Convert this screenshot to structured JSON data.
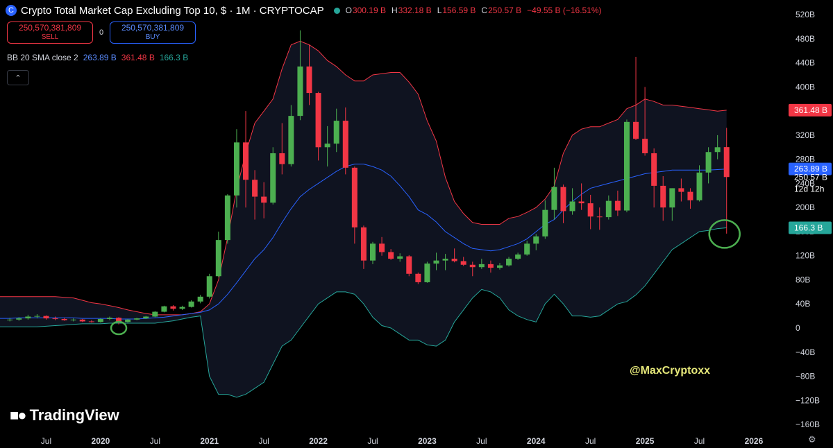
{
  "header": {
    "title": "Crypto Total Market Cap Excluding Top 10, $ · 1M · CRYPTOCAP",
    "icon_symbol": "C",
    "ohlc": [
      {
        "key": "O",
        "value": "300.19 B"
      },
      {
        "key": "H",
        "value": "332.18 B"
      },
      {
        "key": "L",
        "value": "156.59 B"
      },
      {
        "key": "C",
        "value": "250.57 B"
      },
      {
        "key": "",
        "value": "−49.55 B (−16.51%)"
      }
    ]
  },
  "trade": {
    "sell_price": "250,570,381,809",
    "sell_label": "SELL",
    "spread": "0",
    "buy_price": "250,570,381,809",
    "buy_label": "BUY"
  },
  "indicator": {
    "name": "BB 20 SMA close 2",
    "values": [
      {
        "value": "263.89 B",
        "color": "#5b8cff"
      },
      {
        "value": "361.48 B",
        "color": "#f23645"
      },
      {
        "value": "166.3 B",
        "color": "#26a69a"
      }
    ]
  },
  "collapse_icon": "chevron-up-icon",
  "watermark": "@MaxCryptoxx",
  "logo_text": "TradingView",
  "settings_icon": "gear-icon",
  "colors": {
    "up": "#4caf50",
    "down": "#f23645",
    "upper_band": "#f23645",
    "basis": "#2962ff",
    "lower_band": "#26a69a",
    "background": "#000000"
  },
  "chart_data": {
    "type": "candlestick",
    "title": "Crypto Total Market Cap Excluding Top 10, $ · 1M · CRYPTOCAP",
    "unit": "B",
    "ylim": [
      -180,
      540
    ],
    "y_ticks": [
      520,
      480,
      440,
      400,
      360,
      320,
      280,
      240,
      200,
      160,
      120,
      80,
      40,
      0,
      -40,
      -80,
      -120,
      -160
    ],
    "y_tick_labels": [
      "520B",
      "480B",
      "440B",
      "400B",
      "360B",
      "320B",
      "280B",
      "240B",
      "200B",
      "160B",
      "120B",
      "80B",
      "40B",
      "0",
      "−40B",
      "−80B",
      "−120B",
      "−160B"
    ],
    "x_ticks": [
      {
        "label": "Jul",
        "date": "2019-07"
      },
      {
        "label": "2020",
        "date": "2020-01"
      },
      {
        "label": "Jul",
        "date": "2020-07"
      },
      {
        "label": "2021",
        "date": "2021-01"
      },
      {
        "label": "Jul",
        "date": "2021-07"
      },
      {
        "label": "2022",
        "date": "2022-01"
      },
      {
        "label": "Jul",
        "date": "2022-07"
      },
      {
        "label": "2023",
        "date": "2023-01"
      },
      {
        "label": "Jul",
        "date": "2023-07"
      },
      {
        "label": "2024",
        "date": "2024-01"
      },
      {
        "label": "Jul",
        "date": "2024-07"
      },
      {
        "label": "2025",
        "date": "2025-01"
      },
      {
        "label": "Jul",
        "date": "2025-07"
      },
      {
        "label": "2026",
        "date": "2026-01"
      }
    ],
    "candles": [
      {
        "date": "2019-03",
        "o": 13,
        "h": 17,
        "l": 11,
        "c": 14
      },
      {
        "date": "2019-04",
        "o": 14,
        "h": 18,
        "l": 12,
        "c": 16
      },
      {
        "date": "2019-05",
        "o": 16,
        "h": 22,
        "l": 14,
        "c": 19
      },
      {
        "date": "2019-06",
        "o": 19,
        "h": 23,
        "l": 16,
        "c": 20
      },
      {
        "date": "2019-07",
        "o": 20,
        "h": 21,
        "l": 14,
        "c": 16
      },
      {
        "date": "2019-08",
        "o": 16,
        "h": 19,
        "l": 13,
        "c": 15
      },
      {
        "date": "2019-09",
        "o": 15,
        "h": 17,
        "l": 12,
        "c": 13
      },
      {
        "date": "2019-10",
        "o": 13,
        "h": 16,
        "l": 11,
        "c": 14
      },
      {
        "date": "2019-11",
        "o": 14,
        "h": 15,
        "l": 10,
        "c": 11
      },
      {
        "date": "2019-12",
        "o": 11,
        "h": 13,
        "l": 9,
        "c": 10
      },
      {
        "date": "2020-01",
        "o": 10,
        "h": 16,
        "l": 9,
        "c": 15
      },
      {
        "date": "2020-02",
        "o": 15,
        "h": 19,
        "l": 13,
        "c": 17
      },
      {
        "date": "2020-03",
        "o": 17,
        "h": 18,
        "l": 6,
        "c": 10
      },
      {
        "date": "2020-04",
        "o": 10,
        "h": 15,
        "l": 9,
        "c": 14
      },
      {
        "date": "2020-05",
        "o": 14,
        "h": 17,
        "l": 13,
        "c": 16
      },
      {
        "date": "2020-06",
        "o": 16,
        "h": 20,
        "l": 15,
        "c": 19
      },
      {
        "date": "2020-07",
        "o": 19,
        "h": 28,
        "l": 18,
        "c": 27
      },
      {
        "date": "2020-08",
        "o": 27,
        "h": 37,
        "l": 26,
        "c": 36
      },
      {
        "date": "2020-09",
        "o": 36,
        "h": 38,
        "l": 29,
        "c": 32
      },
      {
        "date": "2020-10",
        "o": 32,
        "h": 37,
        "l": 30,
        "c": 35
      },
      {
        "date": "2020-11",
        "o": 35,
        "h": 46,
        "l": 34,
        "c": 44
      },
      {
        "date": "2020-12",
        "o": 44,
        "h": 55,
        "l": 41,
        "c": 52
      },
      {
        "date": "2021-01",
        "o": 52,
        "h": 90,
        "l": 49,
        "c": 86
      },
      {
        "date": "2021-02",
        "o": 86,
        "h": 160,
        "l": 84,
        "c": 146
      },
      {
        "date": "2021-03",
        "o": 146,
        "h": 222,
        "l": 140,
        "c": 220
      },
      {
        "date": "2021-04",
        "o": 220,
        "h": 330,
        "l": 200,
        "c": 308
      },
      {
        "date": "2021-05",
        "o": 308,
        "h": 360,
        "l": 200,
        "c": 246
      },
      {
        "date": "2021-06",
        "o": 246,
        "h": 262,
        "l": 180,
        "c": 218
      },
      {
        "date": "2021-07",
        "o": 218,
        "h": 242,
        "l": 182,
        "c": 208
      },
      {
        "date": "2021-08",
        "o": 208,
        "h": 300,
        "l": 205,
        "c": 290
      },
      {
        "date": "2021-09",
        "o": 290,
        "h": 340,
        "l": 255,
        "c": 272
      },
      {
        "date": "2021-10",
        "o": 272,
        "h": 370,
        "l": 268,
        "c": 352
      },
      {
        "date": "2021-11",
        "o": 352,
        "h": 494,
        "l": 345,
        "c": 434
      },
      {
        "date": "2021-12",
        "o": 434,
        "h": 470,
        "l": 370,
        "c": 390
      },
      {
        "date": "2022-01",
        "o": 390,
        "h": 392,
        "l": 278,
        "c": 300
      },
      {
        "date": "2022-02",
        "o": 300,
        "h": 335,
        "l": 268,
        "c": 306
      },
      {
        "date": "2022-03",
        "o": 306,
        "h": 364,
        "l": 292,
        "c": 344
      },
      {
        "date": "2022-04",
        "o": 344,
        "h": 366,
        "l": 255,
        "c": 266
      },
      {
        "date": "2022-05",
        "o": 266,
        "h": 268,
        "l": 140,
        "c": 167
      },
      {
        "date": "2022-06",
        "o": 167,
        "h": 170,
        "l": 98,
        "c": 112
      },
      {
        "date": "2022-07",
        "o": 112,
        "h": 143,
        "l": 106,
        "c": 140
      },
      {
        "date": "2022-08",
        "o": 140,
        "h": 151,
        "l": 120,
        "c": 126
      },
      {
        "date": "2022-09",
        "o": 126,
        "h": 131,
        "l": 113,
        "c": 115
      },
      {
        "date": "2022-10",
        "o": 115,
        "h": 124,
        "l": 110,
        "c": 119
      },
      {
        "date": "2022-11",
        "o": 119,
        "h": 121,
        "l": 86,
        "c": 90
      },
      {
        "date": "2022-12",
        "o": 90,
        "h": 92,
        "l": 73,
        "c": 76
      },
      {
        "date": "2023-01",
        "o": 76,
        "h": 110,
        "l": 75,
        "c": 107
      },
      {
        "date": "2023-02",
        "o": 107,
        "h": 125,
        "l": 96,
        "c": 112
      },
      {
        "date": "2023-03",
        "o": 112,
        "h": 123,
        "l": 96,
        "c": 115
      },
      {
        "date": "2023-04",
        "o": 115,
        "h": 132,
        "l": 109,
        "c": 111
      },
      {
        "date": "2023-05",
        "o": 111,
        "h": 118,
        "l": 103,
        "c": 105
      },
      {
        "date": "2023-06",
        "o": 105,
        "h": 110,
        "l": 86,
        "c": 101
      },
      {
        "date": "2023-07",
        "o": 101,
        "h": 115,
        "l": 98,
        "c": 106
      },
      {
        "date": "2023-08",
        "o": 106,
        "h": 112,
        "l": 92,
        "c": 100
      },
      {
        "date": "2023-09",
        "o": 100,
        "h": 108,
        "l": 97,
        "c": 104
      },
      {
        "date": "2023-10",
        "o": 104,
        "h": 118,
        "l": 102,
        "c": 115
      },
      {
        "date": "2023-11",
        "o": 115,
        "h": 125,
        "l": 113,
        "c": 122
      },
      {
        "date": "2023-12",
        "o": 122,
        "h": 145,
        "l": 120,
        "c": 140
      },
      {
        "date": "2024-01",
        "o": 140,
        "h": 156,
        "l": 129,
        "c": 152
      },
      {
        "date": "2024-02",
        "o": 152,
        "h": 212,
        "l": 148,
        "c": 196
      },
      {
        "date": "2024-03",
        "o": 196,
        "h": 266,
        "l": 180,
        "c": 234
      },
      {
        "date": "2024-04",
        "o": 234,
        "h": 238,
        "l": 174,
        "c": 194
      },
      {
        "date": "2024-05",
        "o": 194,
        "h": 232,
        "l": 188,
        "c": 210
      },
      {
        "date": "2024-06",
        "o": 210,
        "h": 240,
        "l": 196,
        "c": 207
      },
      {
        "date": "2024-07",
        "o": 207,
        "h": 221,
        "l": 164,
        "c": 185
      },
      {
        "date": "2024-08",
        "o": 185,
        "h": 200,
        "l": 163,
        "c": 184
      },
      {
        "date": "2024-09",
        "o": 184,
        "h": 220,
        "l": 180,
        "c": 211
      },
      {
        "date": "2024-10",
        "o": 211,
        "h": 228,
        "l": 186,
        "c": 195
      },
      {
        "date": "2024-11",
        "o": 195,
        "h": 346,
        "l": 192,
        "c": 342
      },
      {
        "date": "2024-12",
        "o": 342,
        "h": 450,
        "l": 312,
        "c": 314
      },
      {
        "date": "2025-01",
        "o": 314,
        "h": 400,
        "l": 286,
        "c": 290
      },
      {
        "date": "2025-02",
        "o": 290,
        "h": 298,
        "l": 200,
        "c": 236
      },
      {
        "date": "2025-03",
        "o": 236,
        "h": 252,
        "l": 178,
        "c": 200
      },
      {
        "date": "2025-04",
        "o": 200,
        "h": 232,
        "l": 178,
        "c": 232
      },
      {
        "date": "2025-05",
        "o": 232,
        "h": 248,
        "l": 210,
        "c": 226
      },
      {
        "date": "2025-06",
        "o": 226,
        "h": 232,
        "l": 198,
        "c": 212
      },
      {
        "date": "2025-07",
        "o": 212,
        "h": 270,
        "l": 210,
        "c": 258
      },
      {
        "date": "2025-08",
        "o": 258,
        "h": 300,
        "l": 240,
        "c": 292
      },
      {
        "date": "2025-09",
        "o": 292,
        "h": 320,
        "l": 280,
        "c": 300
      },
      {
        "date": "2025-10",
        "o": 300.19,
        "h": 332.18,
        "l": 156.59,
        "c": 250.57
      }
    ],
    "bollinger": {
      "name": "BB 20 SMA close 2",
      "last": {
        "basis": 263.89,
        "upper": 361.48,
        "lower": 166.3
      },
      "upper": [
        52,
        52,
        52,
        52,
        52,
        52,
        51,
        50,
        46,
        42,
        40,
        37,
        34,
        30,
        27,
        24,
        22,
        22,
        22,
        22,
        24,
        27,
        40,
        80,
        150,
        230,
        290,
        340,
        360,
        380,
        430,
        470,
        476,
        470,
        460,
        444,
        434,
        420,
        410,
        410,
        420,
        422,
        424,
        424,
        408,
        388,
        344,
        310,
        250,
        210,
        190,
        175,
        172,
        172,
        172,
        182,
        185,
        192,
        200,
        214,
        236,
        290,
        320,
        330,
        334,
        334,
        340,
        346,
        364,
        370,
        380,
        376,
        370,
        370,
        368,
        366,
        364,
        362,
        360,
        361.48
      ],
      "basis": [
        16,
        17,
        17,
        17,
        17,
        17,
        17,
        17,
        16,
        16,
        16,
        16,
        15,
        15,
        15,
        16,
        17,
        18,
        20,
        22,
        24,
        26,
        30,
        40,
        56,
        75,
        95,
        115,
        130,
        150,
        175,
        198,
        218,
        230,
        240,
        250,
        260,
        268,
        272,
        272,
        268,
        262,
        252,
        236,
        218,
        196,
        188,
        176,
        160,
        150,
        140,
        132,
        130,
        128,
        130,
        135,
        140,
        148,
        160,
        172,
        180,
        196,
        210,
        222,
        232,
        236,
        240,
        244,
        248,
        252,
        256,
        258,
        260,
        262,
        262,
        262,
        262,
        262,
        263,
        263.89
      ],
      "lower": [
        2,
        2,
        2,
        2,
        3,
        4,
        5,
        6,
        7,
        7,
        7,
        8,
        8,
        8,
        8,
        8,
        8,
        10,
        12,
        15,
        18,
        20,
        -80,
        -110,
        -110,
        -115,
        -110,
        -100,
        -90,
        -60,
        -30,
        -20,
        0,
        20,
        40,
        50,
        60,
        60,
        56,
        40,
        18,
        4,
        0,
        -10,
        -20,
        -20,
        -28,
        -30,
        -20,
        10,
        30,
        50,
        64,
        60,
        50,
        30,
        20,
        14,
        10,
        40,
        56,
        40,
        20,
        20,
        18,
        20,
        30,
        40,
        44,
        55,
        70,
        90,
        110,
        130,
        140,
        150,
        160,
        162,
        165,
        166.3
      ]
    },
    "annotations": [
      {
        "type": "circle",
        "date": "2020-03",
        "y": 0,
        "color": "#4caf50"
      },
      {
        "type": "circle",
        "date": "2025-10",
        "y": 156,
        "color": "#4caf50"
      }
    ],
    "axis_price_labels": [
      {
        "text": "361.48 B",
        "value": 361.48,
        "color": "#f23645"
      },
      {
        "text": "263.89 B",
        "value": 263.89,
        "color": "#2962ff"
      },
      {
        "text": "250.57 B",
        "value": 250.57,
        "color": "#000000",
        "text_color": "#ffffff"
      },
      {
        "text": "12d 12h",
        "value": 231,
        "color": "#000000",
        "text_color": "#ffffff"
      },
      {
        "text": "166.3 B",
        "value": 166.3,
        "color": "#26a69a"
      }
    ],
    "grid": false,
    "legend_position": "top-left"
  }
}
